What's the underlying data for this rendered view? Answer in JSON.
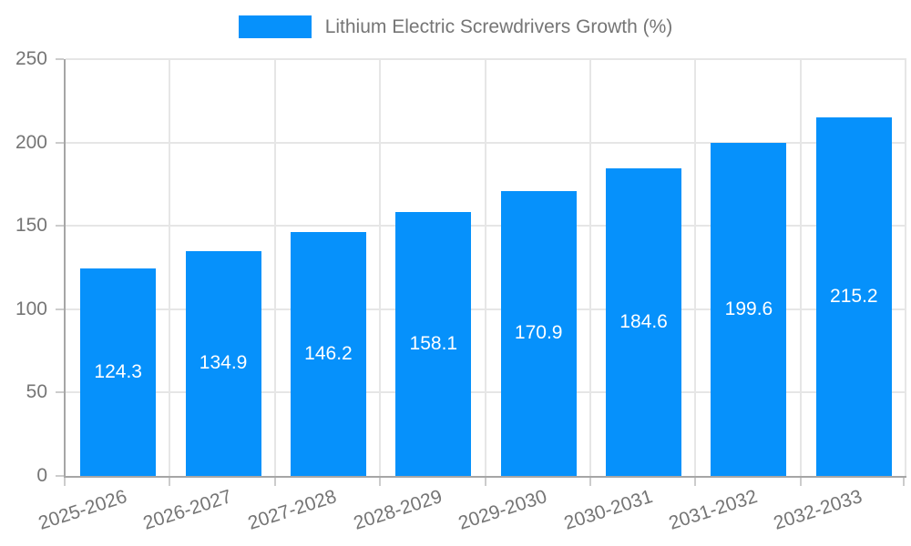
{
  "legend": {
    "label": "Lithium Electric Screwdrivers Growth (%)"
  },
  "colors": {
    "bar": "#0691fb",
    "grid": "#e6e6e6",
    "axis": "#a6a6a6",
    "tick": "#cccccc",
    "text": "#757575",
    "value_label": "#ffffff",
    "background": "#ffffff"
  },
  "chart_data": {
    "type": "bar",
    "title": "Lithium Electric Screwdrivers Growth (%)",
    "categories": [
      "2025-2026",
      "2026-2027",
      "2027-2028",
      "2028-2029",
      "2029-2030",
      "2030-2031",
      "2031-2032",
      "2032-2033"
    ],
    "values": [
      124.3,
      134.9,
      146.2,
      158.1,
      170.9,
      184.6,
      199.6,
      215.2
    ],
    "xlabel": "",
    "ylabel": "",
    "ylim": [
      0,
      250
    ],
    "yticks": [
      0,
      50,
      100,
      150,
      200,
      250
    ],
    "grid": true,
    "legend_position": "top-center",
    "value_labels": "inside-center",
    "x_tick_rotation": -18
  }
}
